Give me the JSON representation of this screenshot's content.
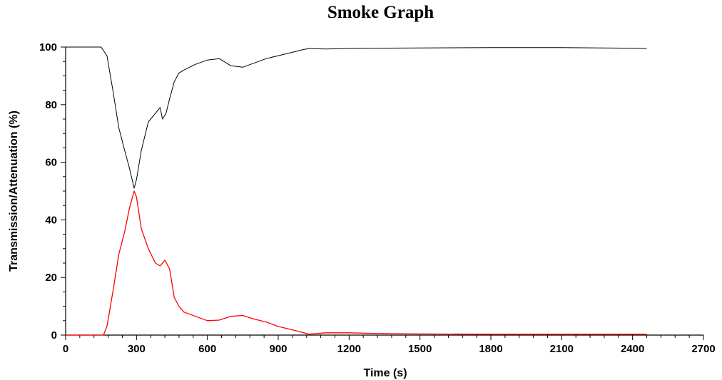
{
  "chart_data": {
    "type": "line",
    "title": "Smoke Graph",
    "xlabel": "Time (s)",
    "ylabel": "Transmission/Attenuation (%)",
    "xlim": [
      0,
      2700
    ],
    "ylim": [
      0,
      100
    ],
    "x_ticks": [
      0,
      300,
      600,
      900,
      1200,
      1500,
      1800,
      2100,
      2400,
      2700
    ],
    "y_ticks": [
      0,
      20,
      40,
      60,
      80,
      100
    ],
    "grid": false,
    "series": [
      {
        "color": "#000000",
        "x": [
          0,
          150,
          175,
          200,
          225,
          250,
          270,
          290,
          300,
          320,
          350,
          380,
          400,
          410,
          425,
          440,
          460,
          480,
          500,
          550,
          600,
          650,
          700,
          750,
          800,
          850,
          900,
          950,
          1000,
          1030,
          1100,
          1200,
          1300,
          1500,
          1800,
          2100,
          2400,
          2460
        ],
        "y": [
          100,
          100,
          97,
          85,
          72,
          64,
          58,
          51,
          54,
          64,
          74,
          77,
          79,
          75,
          77,
          82,
          88,
          91,
          92,
          94,
          95.5,
          96,
          93.5,
          93,
          94.5,
          96,
          97,
          98,
          99,
          99.5,
          99.3,
          99.5,
          99.6,
          99.7,
          99.8,
          99.8,
          99.6,
          99.5
        ]
      },
      {
        "color": "#ff0000",
        "x": [
          0,
          160,
          175,
          200,
          225,
          250,
          270,
          290,
          300,
          320,
          350,
          380,
          400,
          420,
          440,
          460,
          480,
          500,
          550,
          600,
          650,
          700,
          750,
          800,
          850,
          900,
          950,
          1000,
          1030,
          1100,
          1200,
          1300,
          1500,
          1800,
          2100,
          2400,
          2460
        ],
        "y": [
          0,
          0,
          3,
          15,
          28,
          36,
          44,
          50,
          48,
          37,
          30,
          25,
          24,
          26,
          23,
          13,
          10,
          8,
          6.5,
          5,
          5.2,
          6.5,
          6.8,
          5.5,
          4.5,
          3,
          2,
          1,
          0.3,
          0.8,
          0.8,
          0.6,
          0.4,
          0.3,
          0.3,
          0.3,
          0.3
        ]
      }
    ]
  }
}
